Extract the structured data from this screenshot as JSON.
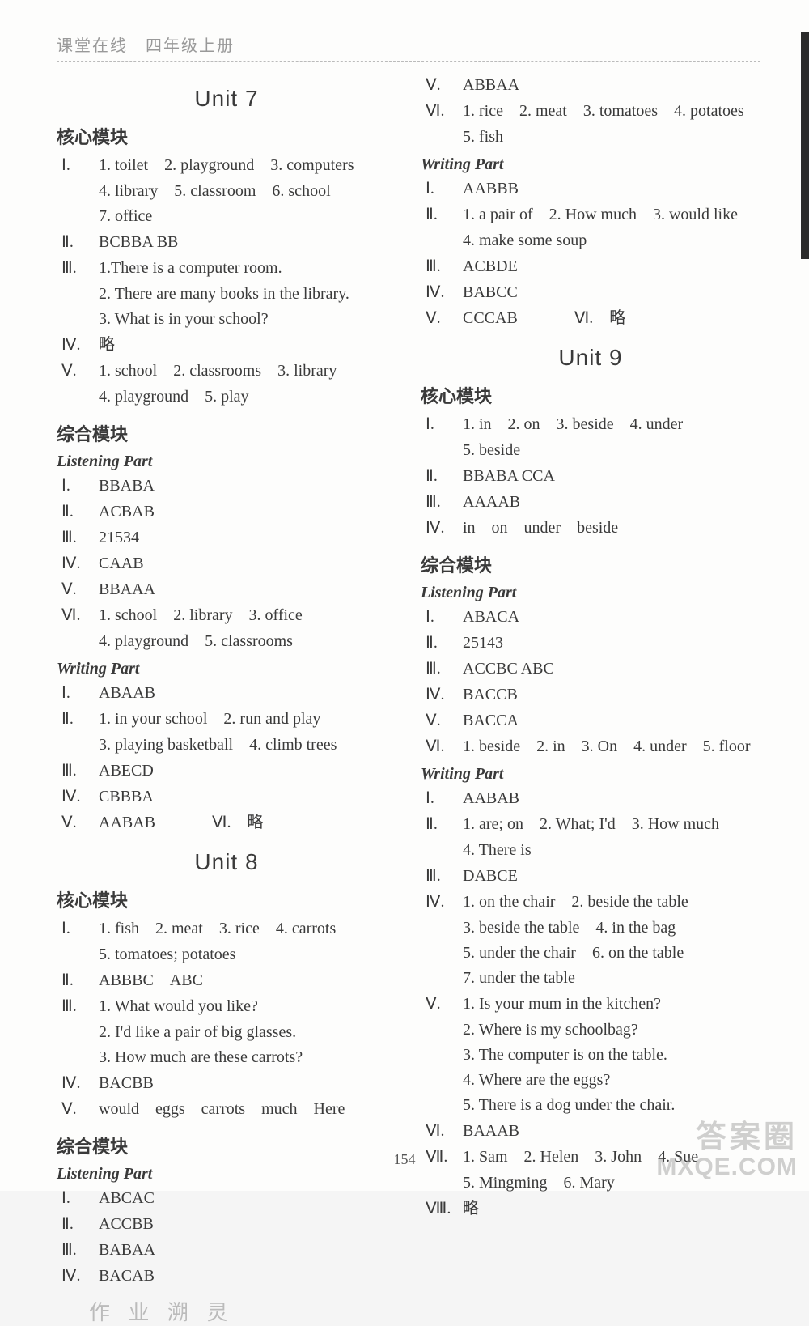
{
  "header": "课堂在线　四年级上册",
  "page_number": "154",
  "watermark_top": "答案圈",
  "watermark_bottom": "MXQE.COM",
  "faint_mark": "作 业 溯 灵",
  "left": {
    "unit7": {
      "title": "Unit 7",
      "core_title": "核心模块",
      "core": {
        "I": "1. toilet　2. playground　3. computers",
        "I_sub1": "4. library　5. classroom　6. school",
        "I_sub2": "7. office",
        "II": "BCBBA BB",
        "III": "1.There is a computer room.",
        "III_sub1": "2. There are many books in the library.",
        "III_sub2": "3. What is in your school?",
        "IV": "略",
        "V": "1. school　2. classrooms　3. library",
        "V_sub1": "4. playground　5. play"
      },
      "comp_title": "综合模块",
      "listening_title": "Listening Part",
      "listening": {
        "I": "BBABA",
        "II": "ACBAB",
        "III": "21534",
        "IV": "CAAB",
        "V": "BBAAA",
        "VI": "1. school　2. library　3. office",
        "VI_sub1": "4. playground　5. classrooms"
      },
      "writing_title": "Writing Part",
      "writing": {
        "I": "ABAAB",
        "II": "1. in your school　2. run and play",
        "II_sub1": "3. playing basketball　4. climb trees",
        "III": "ABECD",
        "IV": "CBBBA",
        "V": "AABAB",
        "VI_marker": "Ⅵ.",
        "VI": "略"
      }
    },
    "unit8": {
      "title": "Unit 8",
      "core_title": "核心模块",
      "core": {
        "I": "1. fish　2. meat　3. rice　4. carrots",
        "I_sub1": "5. tomatoes; potatoes",
        "II": "ABBBC　ABC",
        "III": "1. What would you like?",
        "III_sub1": "2. I'd like a pair of big glasses.",
        "III_sub2": "3. How much are these carrots?",
        "IV": "BACBB",
        "V": "would　eggs　carrots　much　Here"
      },
      "comp_title": "综合模块",
      "listening_title": "Listening Part",
      "listening": {
        "I": "ABCAC",
        "II": "ACCBB",
        "III": "BABAA",
        "IV": "BACAB"
      }
    }
  },
  "right": {
    "unit8_cont": {
      "listening": {
        "V": "ABBAA",
        "VI": "1. rice　2. meat　3. tomatoes　4. potatoes",
        "VI_sub1": "5. fish"
      },
      "writing_title": "Writing Part",
      "writing": {
        "I": "AABBB",
        "II": "1. a pair of　2. How much　3. would like",
        "II_sub1": "4. make some soup",
        "III": "ACBDE",
        "IV": "BABCC",
        "V": "CCCAB",
        "VI_marker": "Ⅵ.",
        "VI": "略"
      }
    },
    "unit9": {
      "title": "Unit 9",
      "core_title": "核心模块",
      "core": {
        "I": "1. in　2. on　3. beside　4. under",
        "I_sub1": "5. beside",
        "II": "BBABA CCA",
        "III": "AAAAB",
        "IV": "in　on　under　beside"
      },
      "comp_title": "综合模块",
      "listening_title": "Listening Part",
      "listening": {
        "I": "ABACA",
        "II": "25143",
        "III": "ACCBC ABC",
        "IV": "BACCB",
        "V": "BACCA",
        "VI": "1. beside　2. in　3. On　4. under　5. floor"
      },
      "writing_title": "Writing Part",
      "writing": {
        "I": "AABAB",
        "II": "1. are; on　2. What; I'd　3. How much",
        "II_sub1": "4. There is",
        "III": "DABCE",
        "IV": "1. on the chair　2. beside the table",
        "IV_sub1": "3. beside the table　4. in the bag",
        "IV_sub2": "5. under the chair　6. on the table",
        "IV_sub3": "7. under the table",
        "V": "1. Is your mum in the kitchen?",
        "V_sub1": "2. Where is my schoolbag?",
        "V_sub2": "3. The computer is on the table.",
        "V_sub3": "4. Where are the eggs?",
        "V_sub4": "5. There is a dog under the chair.",
        "VI": "BAAAB",
        "VII": "1. Sam　2. Helen　3. John　4. Sue",
        "VII_sub1": "5. Mingming　6. Mary",
        "VIII": "略"
      }
    }
  },
  "markers": {
    "I": "Ⅰ.",
    "II": "Ⅱ.",
    "III": "Ⅲ.",
    "IV": "Ⅳ.",
    "V": "Ⅴ.",
    "VI": "Ⅵ.",
    "VII": "Ⅶ.",
    "VIII": "Ⅷ."
  }
}
